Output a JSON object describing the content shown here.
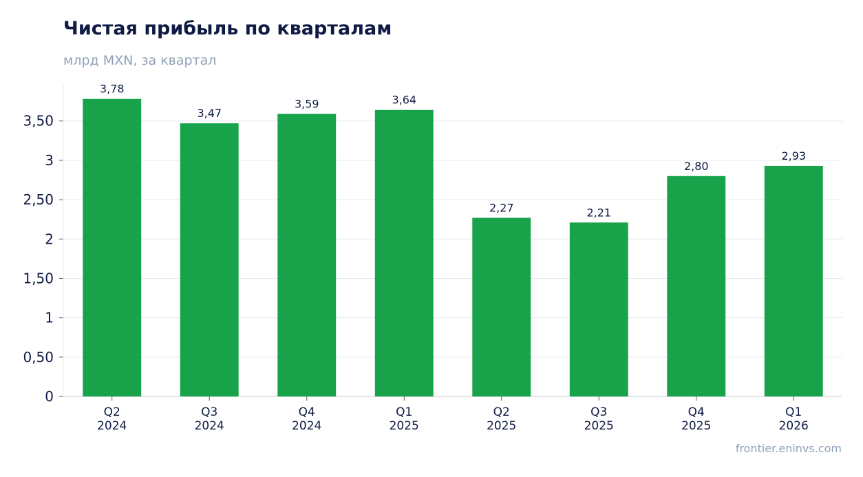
{
  "header": {
    "title": "Чистая прибыль по кварталам",
    "subtitle": "млрд MXN, за квартал"
  },
  "footer": {
    "source": "frontier.eninvs.com"
  },
  "colors": {
    "bar": "#18a34a",
    "grid": "#e3e7ee",
    "axis": "#cfd5de",
    "tick_text": "#0f1b44",
    "label_text": "#0f1b44"
  },
  "chart_data": {
    "type": "bar",
    "categories": [
      [
        "Q2",
        "2024"
      ],
      [
        "Q3",
        "2024"
      ],
      [
        "Q4",
        "2024"
      ],
      [
        "Q1",
        "2025"
      ],
      [
        "Q2",
        "2025"
      ],
      [
        "Q3",
        "2025"
      ],
      [
        "Q4",
        "2025"
      ],
      [
        "Q1",
        "2026"
      ]
    ],
    "values": [
      3.78,
      3.47,
      3.59,
      3.64,
      2.27,
      2.21,
      2.8,
      2.93
    ],
    "value_labels": [
      "3,78",
      "3,47",
      "3,59",
      "3,64",
      "2,27",
      "2,21",
      "2,80",
      "2,93"
    ],
    "y_ticks": [
      0,
      0.5,
      1,
      1.5,
      2,
      2.5,
      3,
      3.5
    ],
    "y_tick_labels": [
      "0",
      "0,50",
      "1",
      "1,50",
      "2",
      "2,50",
      "3",
      "3,50"
    ],
    "ylim": [
      0,
      3.97
    ],
    "grid": true,
    "legend": "none"
  }
}
